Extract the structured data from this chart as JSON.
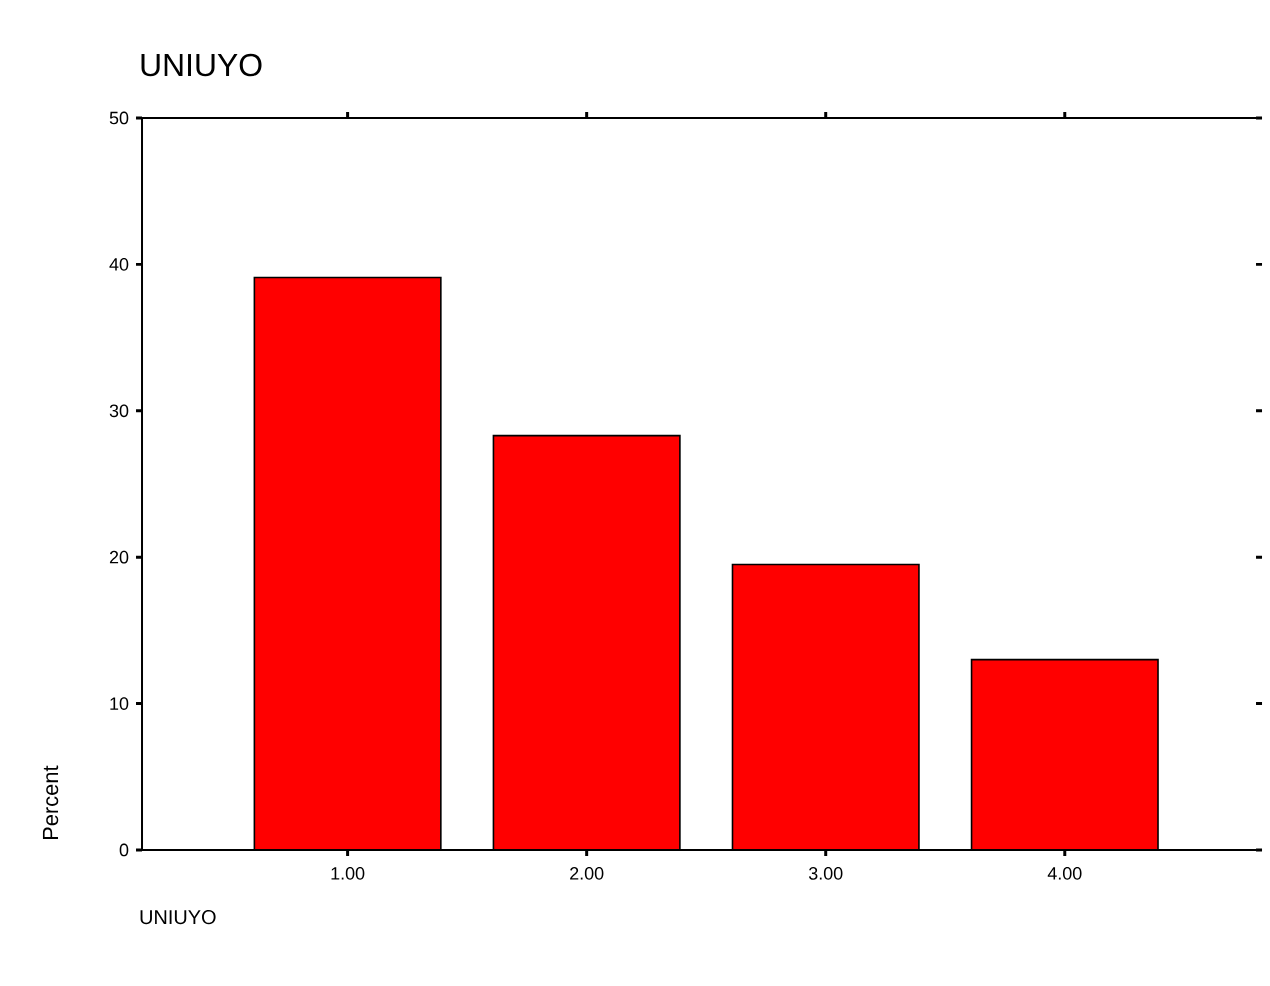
{
  "chart_data": {
    "type": "bar",
    "title": "UNIUYO",
    "xlabel": "UNIUYO",
    "ylabel": "Percent",
    "categories": [
      "1.00",
      "2.00",
      "3.00",
      "4.00"
    ],
    "values": [
      39.1,
      28.3,
      19.5,
      13.0
    ],
    "color": "#ff0000",
    "ylim": [
      0,
      50
    ],
    "yticks": [
      0,
      10,
      20,
      30,
      40,
      50
    ]
  }
}
